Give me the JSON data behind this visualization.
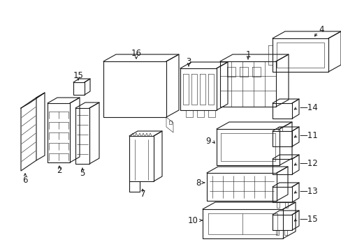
{
  "bg_color": "#ffffff",
  "line_color": "#1a1a1a",
  "lw": 0.8,
  "lw_thin": 0.4,
  "figsize": [
    4.89,
    3.6
  ],
  "dpi": 100
}
